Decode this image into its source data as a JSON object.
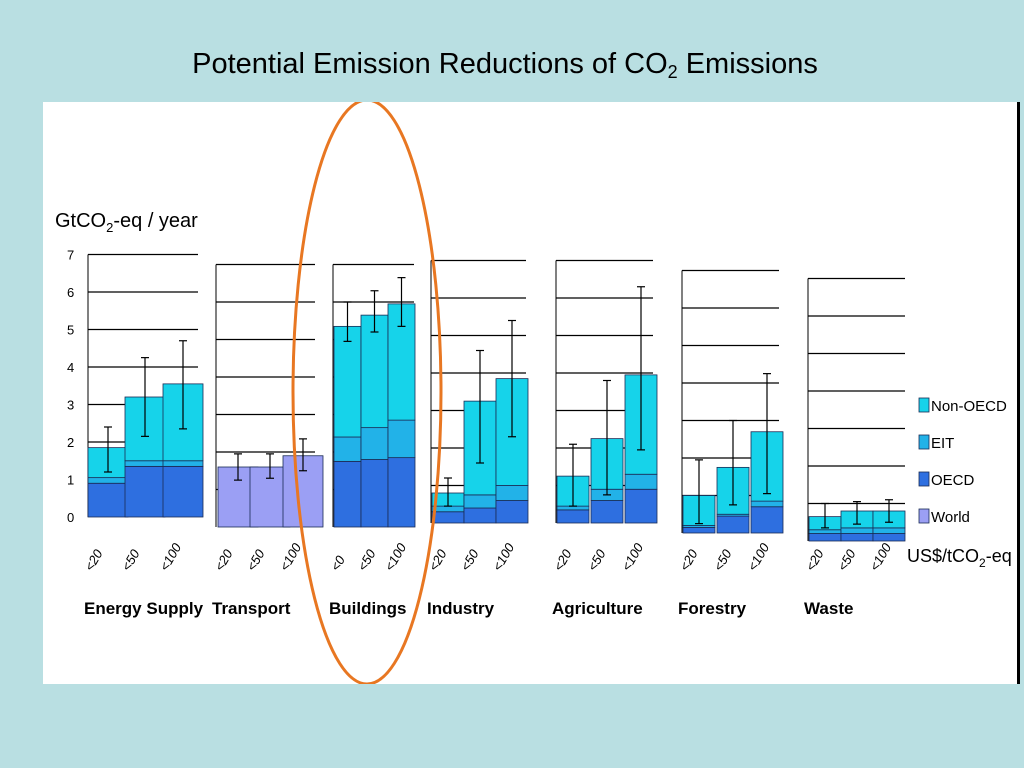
{
  "slide": {
    "title_main": "Potential Emission Reductions of CO",
    "title_sub": "2",
    "title_end": " Emissions"
  },
  "chart_data": {
    "type": "bar",
    "stacked": true,
    "ylabel_main": "GtCO",
    "ylabel_sub": "2",
    "ylabel_end": "-eq / year",
    "ylim": [
      0,
      7
    ],
    "yticks": [
      "0",
      "1",
      "2",
      "3",
      "4",
      "5",
      "6",
      "7"
    ],
    "xunit_main": "US$/tCO",
    "xunit_sub": "2",
    "xunit_end": "-eq",
    "legend_position": "right",
    "legend": [
      {
        "name": "Non-OECD",
        "color": "#16d3ea"
      },
      {
        "name": "EIT",
        "color": "#22b2e8"
      },
      {
        "name": "OECD",
        "color": "#2e6fe0"
      },
      {
        "name": "World",
        "color": "#9b9ff4"
      }
    ],
    "highlight": "Buildings",
    "highlight_color": "#e87722",
    "sectors": [
      {
        "name": "Energy Supply",
        "price_labels": [
          "<20",
          "<50",
          "<100"
        ],
        "bars": [
          {
            "OECD": 0.9,
            "EIT": 0.15,
            "NonOECD": 0.8,
            "err": [
              1.2,
              2.4
            ]
          },
          {
            "OECD": 1.35,
            "EIT": 0.15,
            "NonOECD": 1.7,
            "err": [
              2.15,
              4.25
            ]
          },
          {
            "OECD": 1.35,
            "EIT": 0.15,
            "NonOECD": 2.05,
            "err": [
              2.35,
              4.7
            ]
          }
        ]
      },
      {
        "name": "Transport",
        "price_labels": [
          "<20",
          "<50",
          "<100"
        ],
        "bars": [
          {
            "World": 1.6,
            "err": [
              1.25,
              1.95
            ]
          },
          {
            "World": 1.6,
            "err": [
              1.3,
              1.95
            ]
          },
          {
            "World": 1.9,
            "err": [
              1.5,
              2.35
            ]
          }
        ]
      },
      {
        "name": "Buildings",
        "price_labels": [
          "<0",
          "<50",
          "<100"
        ],
        "bars": [
          {
            "OECD": 1.75,
            "EIT": 0.65,
            "NonOECD": 2.95,
            "err": [
              4.95,
              6.0
            ]
          },
          {
            "OECD": 1.8,
            "EIT": 0.85,
            "NonOECD": 3.0,
            "err": [
              5.2,
              6.3
            ]
          },
          {
            "OECD": 1.85,
            "EIT": 1.0,
            "NonOECD": 3.1,
            "err": [
              5.35,
              6.65
            ]
          }
        ]
      },
      {
        "name": "Industry",
        "price_labels": [
          "<20",
          "<50",
          "<100"
        ],
        "bars": [
          {
            "OECD": 0.3,
            "EIT": 0.15,
            "NonOECD": 0.35,
            "err": [
              0.45,
              1.2
            ]
          },
          {
            "OECD": 0.4,
            "EIT": 0.35,
            "NonOECD": 2.5,
            "err": [
              1.6,
              4.6
            ]
          },
          {
            "OECD": 0.6,
            "EIT": 0.4,
            "NonOECD": 2.85,
            "err": [
              2.3,
              5.4
            ]
          }
        ]
      },
      {
        "name": "Agriculture",
        "price_labels": [
          "<20",
          "<50",
          "<100"
        ],
        "bars": [
          {
            "OECD": 0.35,
            "EIT": 0.1,
            "NonOECD": 0.8,
            "err": [
              0.45,
              2.1
            ]
          },
          {
            "OECD": 0.6,
            "EIT": 0.3,
            "NonOECD": 1.35,
            "err": [
              0.75,
              3.8
            ]
          },
          {
            "OECD": 0.9,
            "EIT": 0.4,
            "NonOECD": 2.65,
            "err": [
              1.95,
              6.3
            ]
          }
        ]
      },
      {
        "name": "Forestry",
        "price_labels": [
          "<20",
          "<50",
          "<100"
        ],
        "bars": [
          {
            "OECD": 0.15,
            "EIT": 0.05,
            "NonOECD": 0.8,
            "err": [
              0.25,
              1.95
            ]
          },
          {
            "OECD": 0.45,
            "EIT": 0.05,
            "NonOECD": 1.25,
            "err": [
              0.75,
              3.0
            ]
          },
          {
            "OECD": 0.7,
            "EIT": 0.15,
            "NonOECD": 1.85,
            "err": [
              1.05,
              4.25
            ]
          }
        ]
      },
      {
        "name": "Waste",
        "price_labels": [
          "<20",
          "<50",
          "<100"
        ],
        "bars": [
          {
            "OECD": 0.2,
            "EIT": 0.1,
            "NonOECD": 0.35,
            "err": [
              0.35,
              1.0
            ]
          },
          {
            "OECD": 0.2,
            "EIT": 0.15,
            "NonOECD": 0.45,
            "err": [
              0.45,
              1.05
            ]
          },
          {
            "OECD": 0.2,
            "EIT": 0.15,
            "NonOECD": 0.45,
            "err": [
              0.5,
              1.1
            ]
          }
        ]
      }
    ]
  }
}
